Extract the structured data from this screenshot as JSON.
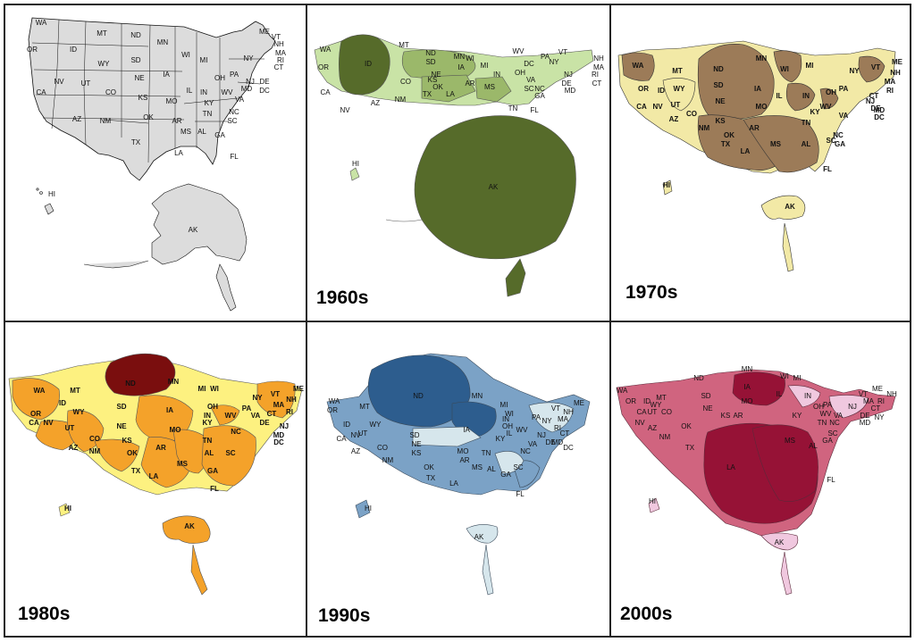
{
  "panels": [
    {
      "id": "reference",
      "decade_label": "",
      "colors": {
        "base": "#dcdcdc",
        "stroke": "#111111"
      },
      "labels": [
        "WA",
        "MT",
        "ND",
        "MN",
        "WI",
        "MI",
        "ME",
        "VT",
        "NH",
        "MA",
        "RI",
        "CT",
        "OR",
        "ID",
        "WY",
        "SD",
        "IA",
        "NY",
        "PA",
        "NJ",
        "DE",
        "MD",
        "DC",
        "NV",
        "UT",
        "CO",
        "NE",
        "IL",
        "IN",
        "OH",
        "WV",
        "VA",
        "KY",
        "CA",
        "KS",
        "MO",
        "TN",
        "NC",
        "AZ",
        "NM",
        "OK",
        "AR",
        "SC",
        "MS",
        "AL",
        "GA",
        "TX",
        "LA",
        "FL",
        "HI",
        "AK"
      ]
    },
    {
      "id": "1960s",
      "decade_label": "1960s",
      "colors": {
        "base": "#c9e3a6",
        "mid": "#9bb86a",
        "dark": "#566b2a",
        "stroke": "#555555"
      },
      "labels": [
        "MT",
        "WA",
        "OR",
        "ID",
        "ND",
        "SD",
        "MN",
        "WI",
        "WV",
        "VT",
        "NE",
        "IA",
        "MI",
        "DC",
        "PA",
        "NY",
        "NH",
        "MA",
        "RI",
        "CT",
        "NJ",
        "DE",
        "MD",
        "CA",
        "NV",
        "AZ",
        "NM",
        "CO",
        "TX",
        "KS",
        "OK",
        "LA",
        "AR",
        "MS",
        "OH",
        "IN",
        "VA",
        "SC",
        "NC",
        "GA",
        "TN",
        "FL",
        "HI",
        "AK"
      ]
    },
    {
      "id": "1970s",
      "decade_label": "1970s",
      "colors": {
        "base": "#f2e9a6",
        "dark": "#9c7b58",
        "stroke": "#333333"
      },
      "labels": [
        "WA",
        "MT",
        "ND",
        "MN",
        "WI",
        "MI",
        "ME",
        "VT",
        "NH",
        "NY",
        "MA",
        "RI",
        "CT",
        "OR",
        "ID",
        "WY",
        "SD",
        "NE",
        "IA",
        "IL",
        "IN",
        "OH",
        "PA",
        "NJ",
        "DE",
        "MD",
        "DC",
        "CA",
        "NV",
        "UT",
        "CO",
        "KS",
        "MO",
        "KY",
        "WV",
        "VA",
        "AZ",
        "NM",
        "OK",
        "AR",
        "TN",
        "NC",
        "SC",
        "TX",
        "LA",
        "MS",
        "AL",
        "GA",
        "FL",
        "HI",
        "AK"
      ]
    },
    {
      "id": "1980s",
      "decade_label": "1980s",
      "colors": {
        "base": "#fdf180",
        "mid": "#f4a22a",
        "dark": "#7a0e0e",
        "stroke": "#555555"
      },
      "labels": [
        "ND",
        "MN",
        "WA",
        "MT",
        "MI",
        "WI",
        "ME",
        "NY",
        "VT",
        "NH",
        "MA",
        "RI",
        "CT",
        "OR",
        "ID",
        "WY",
        "SD",
        "IA",
        "OH",
        "PA",
        "NJ",
        "MD",
        "DC",
        "CA",
        "NV",
        "UT",
        "NE",
        "IN",
        "WV",
        "VA",
        "KY",
        "DE",
        "CO",
        "KS",
        "MO",
        "NC",
        "AZ",
        "NM",
        "OK",
        "AR",
        "TN",
        "SC",
        "MS",
        "AL",
        "GA",
        "TX",
        "LA",
        "FL",
        "HI",
        "AK"
      ]
    },
    {
      "id": "1990s",
      "decade_label": "1990s",
      "colors": {
        "base": "#7ba2c6",
        "light": "#d6e6ec",
        "dark": "#2d5d8e",
        "stroke": "#3a4a5a"
      },
      "labels": [
        "ND",
        "MN",
        "WA",
        "OR",
        "MT",
        "MI",
        "WI",
        "ME",
        "VT",
        "NH",
        "PA",
        "NY",
        "MA",
        "RI",
        "CT",
        "CA",
        "NV",
        "ID",
        "UT",
        "WY",
        "SD",
        "IA",
        "OH",
        "IN",
        "IL",
        "WV",
        "NJ",
        "DE",
        "MD",
        "DC",
        "VA",
        "CO",
        "NE",
        "KS",
        "MO",
        "KY",
        "AZ",
        "NM",
        "OK",
        "AR",
        "TN",
        "NC",
        "SC",
        "TX",
        "LA",
        "MS",
        "AL",
        "GA",
        "FL",
        "HI",
        "AK"
      ]
    },
    {
      "id": "2000s",
      "decade_label": "2000s",
      "colors": {
        "base": "#d0647f",
        "light": "#f0c8df",
        "dark": "#961236",
        "stroke": "#5a2a3a"
      },
      "labels": [
        "ND",
        "MN",
        "WI",
        "MI",
        "WA",
        "MT",
        "IA",
        "SD",
        "OR",
        "ID",
        "WY",
        "CA",
        "NV",
        "UT",
        "CO",
        "NE",
        "IL",
        "IN",
        "OH",
        "ME",
        "NH",
        "VT",
        "MA",
        "RI",
        "CT",
        "NY",
        "PA",
        "NJ",
        "DE",
        "MD",
        "WV",
        "VA",
        "KY",
        "MO",
        "KS",
        "AR",
        "OK",
        "TN",
        "NC",
        "SC",
        "GA",
        "AZ",
        "NM",
        "TX",
        "MS",
        "AL",
        "LA",
        "FL",
        "HI",
        "AK"
      ]
    }
  ]
}
